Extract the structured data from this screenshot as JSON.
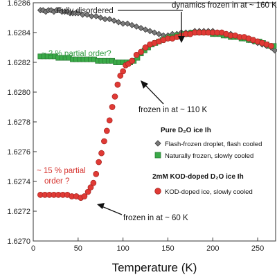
{
  "chart_data": {
    "type": "scatter",
    "xlabel": "Temperature (K)",
    "ylabel": "",
    "xlim": [
      0,
      270
    ],
    "ylim": [
      1.627,
      1.6286
    ],
    "x_ticks": [
      "0",
      "50",
      "100",
      "150",
      "200",
      "250"
    ],
    "y_ticks": [
      "1.6270",
      "1.6272",
      "1.6274",
      "1.6276",
      "1.6278",
      "1.6280",
      "1.6282",
      "1.6284",
      "1.6286"
    ],
    "series": [
      {
        "name": "Flash-frozen droplet, flash cooled",
        "marker": "diamond",
        "color": "#7a7a7a",
        "x": [
          8,
          11,
          14,
          17,
          20,
          23,
          26,
          29,
          32,
          35,
          38,
          41,
          44,
          47,
          50,
          55,
          60,
          65,
          70,
          75,
          80,
          85,
          90,
          95,
          100,
          105,
          110,
          115,
          120,
          125,
          130,
          135,
          140,
          145,
          150,
          155,
          160,
          165,
          170,
          175,
          180,
          185,
          190,
          195,
          200,
          205,
          210,
          215,
          220,
          225,
          230,
          235,
          240,
          245,
          250,
          255,
          260,
          265,
          269
        ],
        "y": [
          1.62855,
          1.62855,
          1.62854,
          1.62855,
          1.62855,
          1.62854,
          1.62855,
          1.62855,
          1.62854,
          1.62854,
          1.62854,
          1.62853,
          1.62853,
          1.62853,
          1.62853,
          1.62852,
          1.62852,
          1.62851,
          1.62851,
          1.6285,
          1.62849,
          1.62849,
          1.62848,
          1.62847,
          1.62846,
          1.62846,
          1.62845,
          1.62844,
          1.62843,
          1.62842,
          1.62841,
          1.6284,
          1.62839,
          1.62838,
          1.62838,
          1.62839,
          1.62839,
          1.6284,
          1.6284,
          1.6284,
          1.62841,
          1.62841,
          1.62841,
          1.62841,
          1.62841,
          1.6284,
          1.6284,
          1.62839,
          1.62839,
          1.62838,
          1.62837,
          1.62836,
          1.62835,
          1.62834,
          1.62833,
          1.62832,
          1.62831,
          1.6283,
          1.62828
        ]
      },
      {
        "name": "Naturally frozen, slowly cooled",
        "marker": "square",
        "color": "#3aaa48",
        "x": [
          8,
          12,
          16,
          20,
          24,
          28,
          32,
          36,
          40,
          44,
          48,
          52,
          56,
          60,
          64,
          68,
          72,
          76,
          80,
          84,
          88,
          92,
          96,
          100,
          104,
          108,
          112,
          116,
          120,
          124,
          128,
          132,
          136,
          140,
          144,
          148,
          152,
          156,
          160,
          164,
          168,
          172,
          176,
          180,
          184,
          188,
          192,
          196,
          200,
          204,
          208,
          212,
          216,
          220,
          224,
          228,
          232,
          236,
          240,
          244,
          248,
          252,
          256,
          260,
          264,
          268
        ],
        "y": [
          1.62824,
          1.62824,
          1.62824,
          1.62824,
          1.62824,
          1.62823,
          1.62823,
          1.62823,
          1.62823,
          1.62822,
          1.62822,
          1.62822,
          1.62822,
          1.62822,
          1.62822,
          1.62822,
          1.62821,
          1.62821,
          1.62821,
          1.62821,
          1.62821,
          1.6282,
          1.6282,
          1.6282,
          1.6282,
          1.6282,
          1.62821,
          1.62823,
          1.62826,
          1.62828,
          1.6283,
          1.62832,
          1.62833,
          1.62834,
          1.62835,
          1.62836,
          1.62837,
          1.62837,
          1.62838,
          1.62838,
          1.62839,
          1.62839,
          1.6284,
          1.6284,
          1.6284,
          1.6284,
          1.6284,
          1.6284,
          1.62839,
          1.62839,
          1.62839,
          1.62838,
          1.62838,
          1.62837,
          1.62837,
          1.62837,
          1.62836,
          1.62836,
          1.62835,
          1.62835,
          1.62834,
          1.62834,
          1.62833,
          1.62832,
          1.62831,
          1.62831
        ]
      },
      {
        "name": "KOD-doped ice, slowly cooled",
        "marker": "circle",
        "color": "#e03a35",
        "x": [
          8,
          13,
          18,
          23,
          28,
          33,
          38,
          43,
          48,
          53,
          57,
          61,
          64,
          67,
          70,
          73,
          76,
          79,
          82,
          85,
          88,
          91,
          94,
          97,
          100,
          103,
          106,
          110,
          115,
          120,
          125,
          130,
          135,
          140,
          145,
          150,
          155,
          160,
          165,
          170,
          175,
          180,
          185,
          190,
          195,
          200,
          205,
          210,
          215,
          220,
          225,
          230,
          235,
          240,
          245,
          250,
          255,
          260,
          265
        ],
        "y": [
          1.62731,
          1.62731,
          1.62731,
          1.62731,
          1.62731,
          1.62731,
          1.62731,
          1.6273,
          1.6273,
          1.62729,
          1.6273,
          1.62733,
          1.62736,
          1.62739,
          1.62745,
          1.62753,
          1.62759,
          1.62767,
          1.62774,
          1.62781,
          1.6279,
          1.62797,
          1.62805,
          1.62811,
          1.62814,
          1.62818,
          1.62819,
          1.62821,
          1.62825,
          1.62827,
          1.6283,
          1.62832,
          1.62833,
          1.62834,
          1.62835,
          1.62836,
          1.62836,
          1.62837,
          1.62838,
          1.62839,
          1.62839,
          1.6284,
          1.6284,
          1.6284,
          1.6284,
          1.6284,
          1.6284,
          1.6284,
          1.62839,
          1.62838,
          1.62838,
          1.62837,
          1.62837,
          1.62836,
          1.62835,
          1.62834,
          1.62833,
          1.62832,
          1.62831
        ]
      }
    ],
    "annotations": [
      {
        "text": "Fully disordered",
        "color": "#222222"
      },
      {
        "text": "dynamics frozen in at ~ 160 K",
        "color": "#111111"
      },
      {
        "text": "~ 2 % partial order?",
        "color": "#2e9a3e"
      },
      {
        "text": "frozen in at ~ 110 K",
        "color": "#111111"
      },
      {
        "text": "~ 15 % partial",
        "color": "#d6322d"
      },
      {
        "text": "order ?",
        "color": "#d6322d"
      },
      {
        "text": "frozen in at ~ 60 K",
        "color": "#111111"
      }
    ],
    "legend": {
      "placement": "bottom-right",
      "group1_title": "Pure D₂O ice Ih",
      "group2_title": "2mM KOD-doped D₂O ice Ih",
      "entries": [
        "Flash-frozen droplet, flash cooled",
        "Naturally frozen, slowly cooled",
        "KOD-doped ice, slowly cooled"
      ]
    },
    "grid": false
  }
}
